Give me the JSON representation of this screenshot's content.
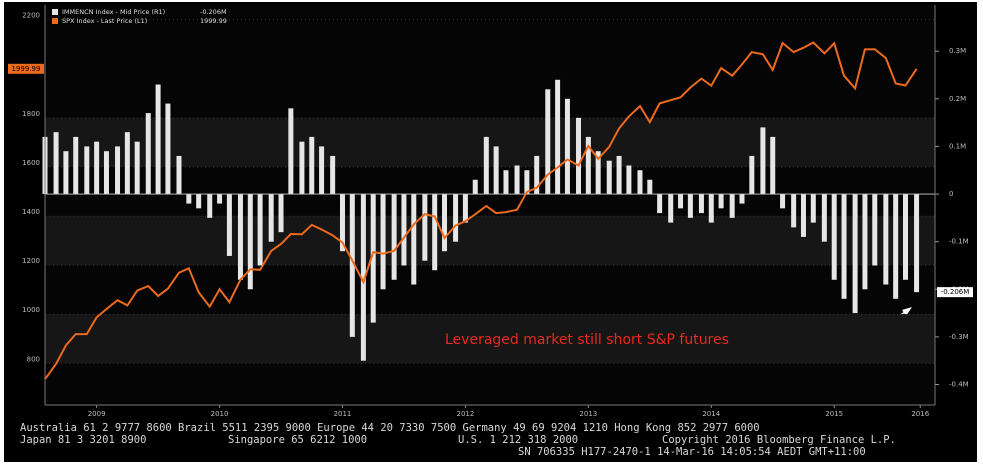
{
  "chart_data": {
    "type": "bar-line",
    "annotation": "Leveraged market still short S&P futures",
    "x": [
      2009.08,
      2009.17,
      2009.25,
      2009.33,
      2009.42,
      2009.5,
      2009.58,
      2009.67,
      2009.75,
      2009.83,
      2009.92,
      2010.0,
      2010.08,
      2010.17,
      2010.25,
      2010.33,
      2010.42,
      2010.5,
      2010.58,
      2010.67,
      2010.75,
      2010.83,
      2010.92,
      2011.0,
      2011.08,
      2011.17,
      2011.25,
      2011.33,
      2011.42,
      2011.5,
      2011.58,
      2011.67,
      2011.75,
      2011.83,
      2011.92,
      2012.0,
      2012.08,
      2012.17,
      2012.25,
      2012.33,
      2012.42,
      2012.5,
      2012.58,
      2012.67,
      2012.75,
      2012.83,
      2012.92,
      2013.0,
      2013.08,
      2013.17,
      2013.25,
      2013.33,
      2013.42,
      2013.5,
      2013.58,
      2013.67,
      2013.75,
      2013.83,
      2013.92,
      2014.0,
      2014.08,
      2014.17,
      2014.25,
      2014.33,
      2014.42,
      2014.5,
      2014.58,
      2014.67,
      2014.75,
      2014.83,
      2014.92,
      2015.0,
      2015.08,
      2015.17,
      2015.25,
      2015.33,
      2015.42,
      2015.5,
      2015.58,
      2015.67,
      2015.75,
      2015.83,
      2015.92,
      2016.0,
      2016.08,
      2016.17
    ],
    "series": [
      {
        "name": "IMMENCN Index - Mid Price (R1)",
        "last_label": "-0.206M",
        "type": "bar",
        "axis": "y2",
        "color": "#e6e6e6",
        "values": [
          0.12,
          0.13,
          0.09,
          0.12,
          0.1,
          0.11,
          0.09,
          0.1,
          0.13,
          0.11,
          0.17,
          0.23,
          0.19,
          0.08,
          -0.02,
          -0.03,
          -0.05,
          -0.02,
          -0.13,
          -0.18,
          -0.2,
          -0.15,
          -0.1,
          -0.08,
          0.18,
          0.11,
          0.12,
          0.1,
          0.08,
          -0.12,
          -0.3,
          -0.35,
          -0.27,
          -0.2,
          -0.18,
          -0.15,
          -0.19,
          -0.14,
          -0.16,
          -0.12,
          -0.1,
          -0.06,
          0.03,
          0.12,
          0.1,
          0.05,
          0.06,
          0.05,
          0.08,
          0.22,
          0.24,
          0.2,
          0.16,
          0.12,
          0.09,
          0.07,
          0.08,
          0.06,
          0.05,
          0.03,
          -0.04,
          -0.06,
          -0.03,
          -0.05,
          -0.04,
          -0.06,
          -0.03,
          -0.05,
          -0.02,
          0.08,
          0.14,
          0.12,
          -0.03,
          -0.07,
          -0.09,
          -0.06,
          -0.1,
          -0.18,
          -0.22,
          -0.25,
          -0.2,
          -0.15,
          -0.19,
          -0.22,
          -0.18,
          -0.206
        ]
      },
      {
        "name": "SPX Index - Last Price (L1)",
        "last_label": "1999.99",
        "type": "line",
        "axis": "y",
        "color": "#ec6a1e",
        "values": [
          735,
          798,
          873,
          919,
          919,
          987,
          1021,
          1057,
          1036,
          1096,
          1115,
          1074,
          1104,
          1169,
          1187,
          1089,
          1031,
          1102,
          1049,
          1141,
          1183,
          1181,
          1258,
          1286,
          1327,
          1326,
          1364,
          1345,
          1321,
          1292,
          1219,
          1131,
          1253,
          1247,
          1258,
          1312,
          1366,
          1408,
          1398,
          1310,
          1362,
          1379,
          1407,
          1441,
          1412,
          1416,
          1426,
          1498,
          1515,
          1569,
          1598,
          1631,
          1606,
          1686,
          1633,
          1682,
          1757,
          1806,
          1848,
          1783,
          1859,
          1872,
          1884,
          1924,
          1960,
          1931,
          2003,
          1972,
          2018,
          2068,
          2059,
          1995,
          2105,
          2068,
          2086,
          2107,
          2063,
          2104,
          1972,
          1920,
          2079,
          2080,
          2044,
          1940,
          1932,
          1999.99
        ]
      }
    ],
    "xlim": [
      2009.08,
      2016.32
    ],
    "xticks": [
      {
        "value": 2009.5,
        "label": "2009"
      },
      {
        "value": 2010.5,
        "label": "2010"
      },
      {
        "value": 2011.5,
        "label": "2011"
      },
      {
        "value": 2012.5,
        "label": "2012"
      },
      {
        "value": 2013.5,
        "label": "2013"
      },
      {
        "value": 2014.5,
        "label": "2014"
      },
      {
        "value": 2015.5,
        "label": "2015"
      },
      {
        "value": 2016.2,
        "label": "2016"
      }
    ],
    "ylim": [
      630,
      2260
    ],
    "yticks": [
      800,
      1000,
      1200,
      1400,
      1600,
      1800,
      2200
    ],
    "y2lim": [
      -0.443,
      0.397
    ],
    "y2ticks": [
      {
        "value": 0.3,
        "label": "0.3M"
      },
      {
        "value": 0.2,
        "label": "0.2M"
      },
      {
        "value": 0.1,
        "label": "0.1M"
      },
      0,
      {
        "value": -0.1,
        "label": "-0.1M"
      },
      {
        "value": -0.2,
        "label": "-0.2M"
      },
      {
        "value": -0.3,
        "label": "-0.3M"
      },
      {
        "value": -0.4,
        "label": "-0.4M"
      }
    ],
    "grid": true,
    "footer": [
      "Australia 61 2 9777 8600 Brazil 5511 2395 9000 Europe 44 20 7330 7500 Germany 49 69 9204 1210 Hong Kong 852 2977 6000",
      "Japan 81 3 3201 8900",
      "Singapore 65 6212 1000",
      "U.S. 1 212 318 2000",
      "Copyright 2016 Bloomberg Finance L.P.",
      "SN 706335 H177-2470-1 14-Mar-16 14:05:54 AEDT GMT+11:00"
    ]
  }
}
